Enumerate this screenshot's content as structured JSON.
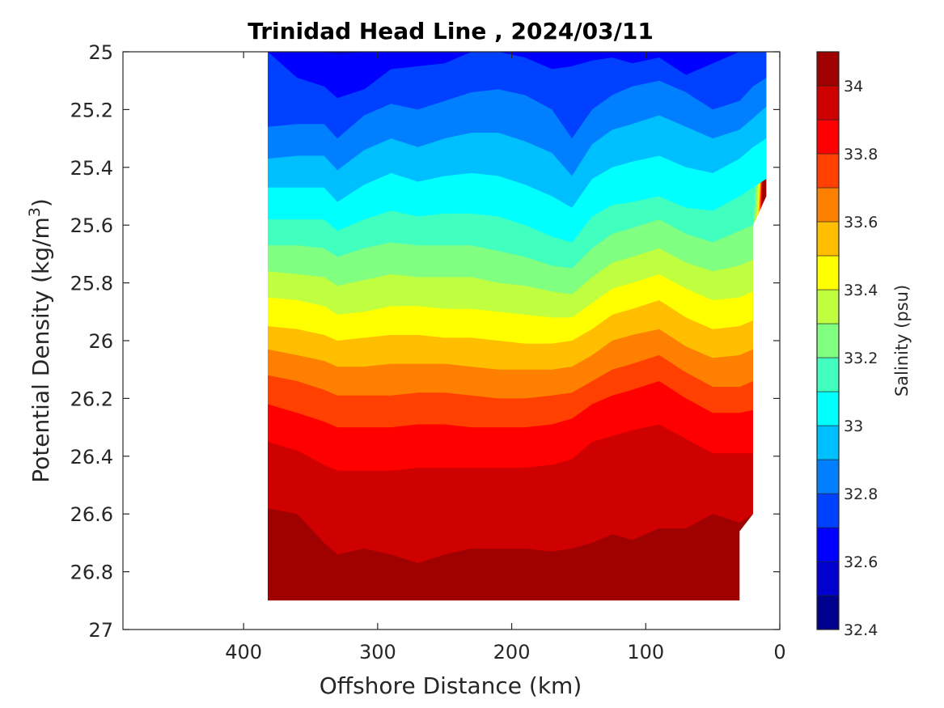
{
  "chart_data": {
    "type": "heatmap",
    "subtype": "filled-contour",
    "title": "Trinidad Head Line , 2024/03/11",
    "xlabel": "Offshore Distance (km)",
    "ylabel_main": "Potential Density (kg/m",
    "ylabel_sup": "3",
    "ylabel_close": ")",
    "colorbar_label": "Salinity (psu)",
    "xlim": [
      490,
      0
    ],
    "x_reversed": true,
    "ylim": [
      25,
      27
    ],
    "y_reversed": true,
    "xticks": [
      400,
      300,
      200,
      100,
      0
    ],
    "yticks": [
      25,
      25.2,
      25.4,
      25.6,
      25.8,
      26,
      26.2,
      26.4,
      26.6,
      26.8,
      27
    ],
    "ytick_labels": [
      "25",
      "25.2",
      "25.4",
      "25.6",
      "25.8",
      "26",
      "26.2",
      "26.4",
      "26.6",
      "26.8",
      "27"
    ],
    "clim": [
      32.4,
      34.1
    ],
    "colorbar_ticks": [
      32.4,
      32.6,
      32.8,
      33,
      33.2,
      33.4,
      33.6,
      33.8,
      34
    ],
    "colorbar_tick_labels": [
      "32.4",
      "32.6",
      "32.8",
      "33",
      "33.2",
      "33.4",
      "33.6",
      "33.8",
      "34"
    ],
    "levels": [
      32.4,
      32.5,
      32.6,
      32.7,
      32.8,
      32.9,
      33.0,
      33.1,
      33.2,
      33.3,
      33.4,
      33.5,
      33.6,
      33.7,
      33.8,
      33.9,
      34.0,
      34.1
    ],
    "level_colors": [
      "#00008f",
      "#0000cf",
      "#0000ff",
      "#0040ff",
      "#0080ff",
      "#00bfff",
      "#00ffff",
      "#40ffbf",
      "#80ff80",
      "#bfff40",
      "#ffff00",
      "#ffbf00",
      "#ff8000",
      "#ff4000",
      "#ff0000",
      "#cf0000",
      "#9f0000"
    ],
    "grid": false,
    "data_coverage": {
      "x_range_km": [
        382,
        10
      ],
      "sigma_range": [
        25.0,
        26.9
      ]
    },
    "contour_boundaries": {
      "x": [
        382,
        360,
        340,
        330,
        310,
        290,
        270,
        250,
        230,
        210,
        190,
        170,
        155,
        140,
        125,
        110,
        90,
        70,
        50,
        30,
        20,
        10
      ],
      "isolines": [
        {
          "level": 32.6,
          "sigma": [
            null,
            null,
            null,
            25.01,
            null,
            null,
            null,
            null,
            null,
            null,
            null,
            null,
            null,
            null,
            null,
            null,
            null,
            null,
            null,
            null,
            null,
            null
          ]
        },
        {
          "level": 32.7,
          "sigma": [
            null,
            25.09,
            25.12,
            25.16,
            25.13,
            25.06,
            25.05,
            25.04,
            25.0,
            25.0,
            25.02,
            25.06,
            25.05,
            25.03,
            25.02,
            25.04,
            25.02,
            25.08,
            25.04,
            25.0,
            25.0,
            null
          ]
        },
        {
          "level": 32.8,
          "sigma": [
            25.26,
            25.25,
            25.25,
            25.3,
            25.22,
            25.18,
            25.2,
            25.17,
            25.14,
            25.13,
            25.15,
            25.2,
            25.3,
            25.2,
            25.15,
            25.12,
            25.1,
            25.14,
            25.2,
            25.17,
            25.12,
            25.09
          ]
        },
        {
          "level": 32.9,
          "sigma": [
            25.37,
            25.36,
            25.36,
            25.41,
            25.34,
            25.3,
            25.33,
            25.3,
            25.28,
            25.28,
            25.31,
            25.35,
            25.43,
            25.32,
            25.27,
            25.25,
            25.22,
            25.26,
            25.3,
            25.27,
            25.23,
            25.19
          ]
        },
        {
          "level": 33.0,
          "sigma": [
            25.47,
            25.47,
            25.47,
            25.52,
            25.46,
            25.42,
            25.45,
            25.43,
            25.42,
            25.43,
            25.46,
            25.5,
            25.54,
            25.44,
            25.4,
            25.38,
            25.36,
            25.4,
            25.42,
            25.37,
            25.33,
            25.3
          ]
        },
        {
          "level": 33.1,
          "sigma": [
            25.58,
            25.58,
            25.58,
            25.62,
            25.58,
            25.55,
            25.57,
            25.56,
            25.56,
            25.57,
            25.6,
            25.64,
            25.66,
            25.57,
            25.53,
            25.52,
            25.5,
            25.54,
            25.55,
            25.5,
            25.47,
            25.44
          ]
        },
        {
          "level": 33.2,
          "sigma": [
            25.67,
            25.67,
            25.68,
            25.71,
            25.68,
            25.66,
            25.67,
            25.67,
            25.67,
            25.69,
            25.71,
            25.74,
            25.75,
            25.68,
            25.63,
            25.61,
            25.58,
            25.63,
            25.66,
            25.62,
            25.6,
            null
          ]
        },
        {
          "level": 33.3,
          "sigma": [
            25.76,
            25.77,
            25.78,
            25.81,
            25.79,
            25.77,
            25.78,
            25.78,
            25.78,
            25.8,
            25.81,
            25.83,
            25.84,
            25.78,
            25.73,
            25.71,
            25.68,
            25.73,
            25.76,
            25.74,
            25.72,
            null
          ]
        },
        {
          "level": 33.4,
          "sigma": [
            25.85,
            25.86,
            25.88,
            25.91,
            25.9,
            25.88,
            25.88,
            25.89,
            25.89,
            25.9,
            25.91,
            25.92,
            25.92,
            25.87,
            25.82,
            25.8,
            25.77,
            25.82,
            25.86,
            25.85,
            25.83,
            null
          ]
        },
        {
          "level": 33.5,
          "sigma": [
            25.95,
            25.96,
            25.98,
            26.0,
            25.99,
            25.98,
            25.98,
            25.99,
            25.99,
            26.0,
            26.01,
            26.01,
            26.0,
            25.96,
            25.91,
            25.89,
            25.86,
            25.92,
            25.96,
            25.95,
            25.93,
            null
          ]
        },
        {
          "level": 33.6,
          "sigma": [
            26.03,
            26.05,
            26.07,
            26.09,
            26.09,
            26.08,
            26.08,
            26.08,
            26.09,
            26.1,
            26.1,
            26.1,
            26.09,
            26.05,
            26.0,
            25.98,
            25.96,
            26.02,
            26.06,
            26.05,
            26.03,
            null
          ]
        },
        {
          "level": 33.7,
          "sigma": [
            26.12,
            26.14,
            26.17,
            26.19,
            26.19,
            26.19,
            26.18,
            26.18,
            26.19,
            26.2,
            26.2,
            26.19,
            26.18,
            26.14,
            26.1,
            26.08,
            26.05,
            26.11,
            26.16,
            26.16,
            26.14,
            null
          ]
        },
        {
          "level": 33.8,
          "sigma": [
            26.22,
            26.25,
            26.28,
            26.3,
            26.3,
            26.3,
            26.29,
            26.29,
            26.3,
            26.3,
            26.3,
            26.29,
            26.27,
            26.22,
            26.19,
            26.17,
            26.14,
            26.2,
            26.25,
            26.25,
            26.24,
            null
          ]
        },
        {
          "level": 33.9,
          "sigma": [
            26.35,
            26.38,
            26.43,
            26.45,
            26.45,
            26.45,
            26.44,
            26.44,
            26.44,
            26.44,
            26.44,
            26.43,
            26.41,
            26.35,
            26.33,
            26.31,
            26.29,
            26.34,
            26.39,
            26.39,
            26.39,
            null
          ]
        },
        {
          "level": 34.0,
          "sigma": [
            26.58,
            26.6,
            26.7,
            26.74,
            26.72,
            26.74,
            26.77,
            26.74,
            26.72,
            26.72,
            26.72,
            26.73,
            26.72,
            26.7,
            26.67,
            26.69,
            26.65,
            26.65,
            26.6,
            26.63,
            26.6,
            null
          ]
        }
      ],
      "bottom_sigma": 26.9,
      "top_sigma": 25.0
    }
  }
}
